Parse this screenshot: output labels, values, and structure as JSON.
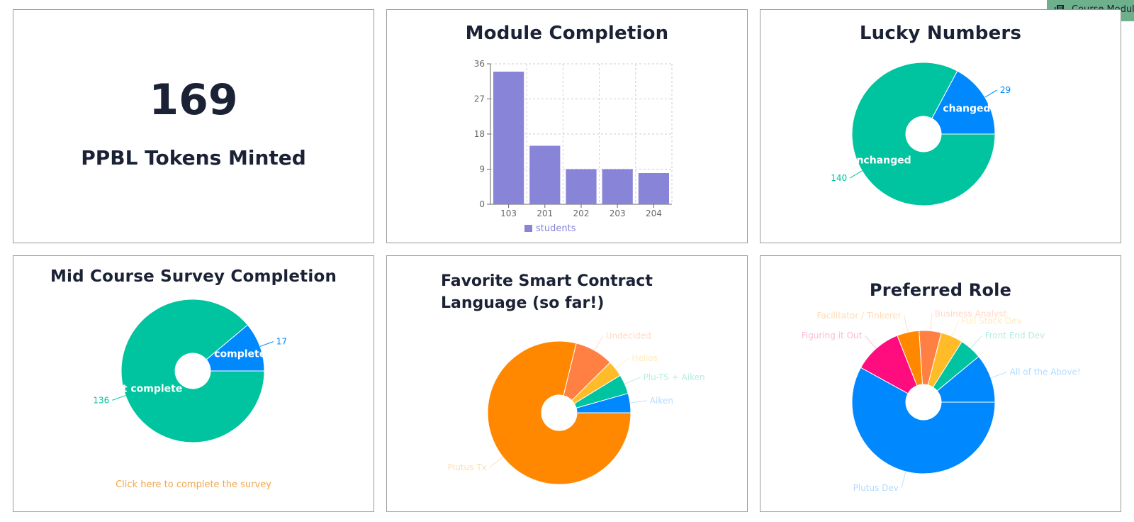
{
  "floating_tab": {
    "label": "Course Modul",
    "icon": "book-icon"
  },
  "tokens": {
    "value": "169",
    "label": "PPBL Tokens Minted"
  },
  "colors": {
    "bar": "#8884d8",
    "teal": "#00c49f",
    "blue": "#0088fe",
    "orange": "#ff8800",
    "coral": "#ff8042",
    "yellow": "#ffbb28",
    "pink": "#ff0d7e",
    "link": "#f2a64b"
  },
  "module_completion": {
    "title": "Module Completion",
    "chart_data": {
      "type": "bar",
      "categories": [
        "103",
        "201",
        "202",
        "203",
        "204"
      ],
      "series": [
        {
          "name": "students",
          "values": [
            34,
            15,
            9,
            9,
            8
          ]
        }
      ],
      "yticks": [
        "0",
        "9",
        "18",
        "27",
        "36"
      ],
      "ylim": [
        0,
        36
      ],
      "grid": true,
      "legend": "bottom"
    }
  },
  "lucky_numbers": {
    "title": "Lucky Numbers",
    "chart_data": {
      "type": "pie",
      "slices": [
        {
          "label": "changed",
          "value": 29,
          "value_label": "29",
          "color": "#0088fe"
        },
        {
          "label": "unchanged",
          "value": 140,
          "value_label": "140",
          "color": "#00c49f"
        }
      ]
    }
  },
  "survey": {
    "title": "Mid Course Survey Completion",
    "link_text": "Click here to complete the survey",
    "chart_data": {
      "type": "pie",
      "slices": [
        {
          "label": "complete",
          "value": 17,
          "value_label": "17",
          "color": "#0088fe"
        },
        {
          "label": "not complete",
          "value": 136,
          "value_label": "136",
          "color": "#00c49f"
        }
      ]
    }
  },
  "language": {
    "title": "Favorite Smart Contract Language (so far!)",
    "chart_data": {
      "type": "pie",
      "slices": [
        {
          "label": "Aiken",
          "value": 6,
          "color": "#0088fe"
        },
        {
          "label": "Plu-TS + Aiken",
          "value": 6,
          "color": "#00c49f"
        },
        {
          "label": "Helios",
          "value": 5,
          "color": "#ffbb28"
        },
        {
          "label": "Undecided",
          "value": 12,
          "color": "#ff8042"
        },
        {
          "label": "Plutus Tx",
          "value": 108,
          "color": "#ff8800"
        }
      ]
    }
  },
  "role": {
    "title": "Preferred Role",
    "chart_data": {
      "type": "pie",
      "slices": [
        {
          "label": "All of the Above!",
          "value": 11,
          "color": "#0088fe"
        },
        {
          "label": "Front End Dev",
          "value": 5,
          "color": "#00c49f"
        },
        {
          "label": "Full Stack Dev",
          "value": 5,
          "color": "#ffbb28"
        },
        {
          "label": "Business Analyst",
          "value": 5,
          "color": "#ff8042"
        },
        {
          "label": "Facilitator / Tinkerer",
          "value": 5,
          "color": "#ff8800"
        },
        {
          "label": "Figuring it Out",
          "value": 11,
          "color": "#ff0d7e"
        },
        {
          "label": "Plutus Dev",
          "value": 58,
          "color": "#0088fe"
        }
      ]
    }
  }
}
